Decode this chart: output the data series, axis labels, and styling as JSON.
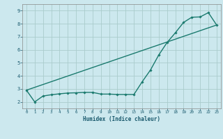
{
  "xlabel": "Humidex (Indice chaleur)",
  "bg_color": "#cce8ee",
  "grid_color": "#aacccc",
  "line_color": "#1a7a6e",
  "xlim": [
    -0.5,
    23.5
  ],
  "ylim": [
    1.5,
    9.5
  ],
  "xticks": [
    0,
    1,
    2,
    3,
    4,
    5,
    6,
    7,
    8,
    9,
    10,
    11,
    12,
    13,
    14,
    15,
    16,
    17,
    18,
    19,
    20,
    21,
    22,
    23
  ],
  "yticks": [
    2,
    3,
    4,
    5,
    6,
    7,
    8,
    9
  ],
  "line1_x": [
    0,
    1,
    2,
    3,
    4,
    5,
    6,
    7,
    8,
    9,
    10,
    11,
    12,
    13,
    14,
    15,
    16,
    17,
    18,
    19,
    20,
    21,
    22,
    23
  ],
  "line1_y": [
    2.9,
    2.0,
    2.45,
    2.55,
    2.62,
    2.68,
    2.7,
    2.73,
    2.73,
    2.6,
    2.6,
    2.57,
    2.57,
    2.57,
    3.55,
    4.45,
    5.6,
    6.55,
    7.3,
    8.1,
    8.5,
    8.52,
    8.85,
    7.9
  ],
  "line2_x": [
    0,
    23
  ],
  "line2_y": [
    2.9,
    7.9
  ],
  "marker_x": [
    0,
    1,
    2,
    3,
    4,
    5,
    6,
    7,
    8,
    9,
    10,
    11,
    12,
    13,
    14,
    15,
    16,
    17,
    18,
    19,
    20,
    21,
    22,
    23
  ],
  "marker_y": [
    2.9,
    2.0,
    2.45,
    2.55,
    2.62,
    2.68,
    2.7,
    2.73,
    2.73,
    2.6,
    2.6,
    2.57,
    2.57,
    2.57,
    3.55,
    4.45,
    5.6,
    6.55,
    7.3,
    8.1,
    8.5,
    8.52,
    8.85,
    7.9
  ]
}
